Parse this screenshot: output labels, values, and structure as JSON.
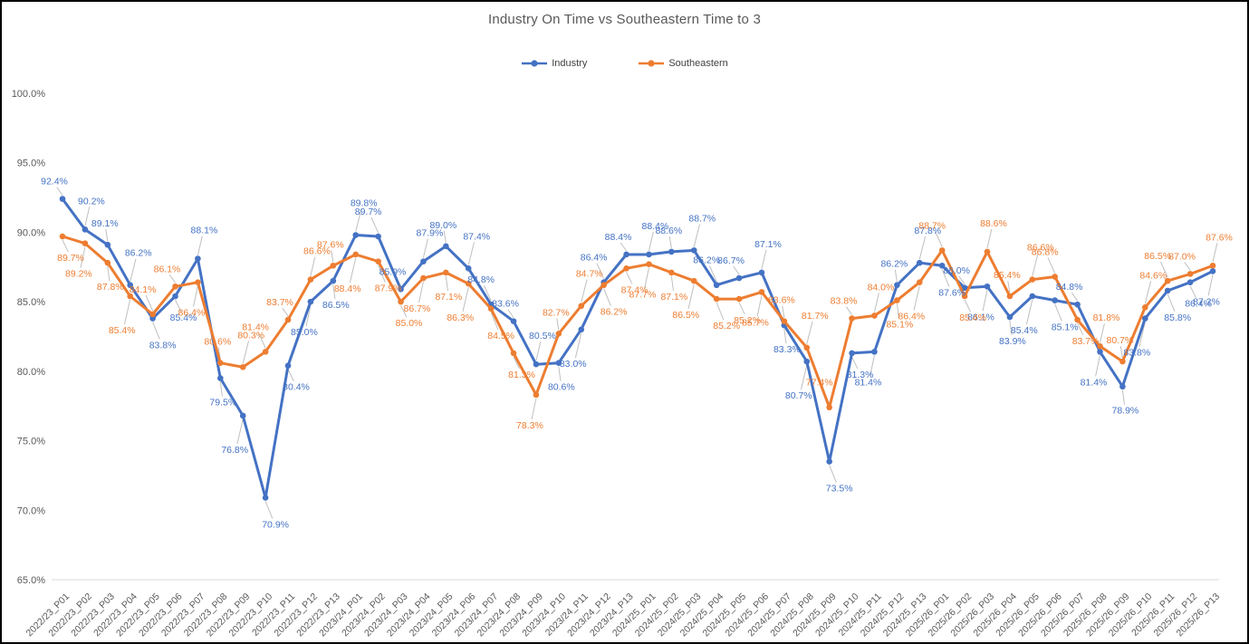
{
  "page": {
    "title": "Industry On Time vs Southeastern Time to 3"
  },
  "legend": {
    "items": [
      {
        "label": "Industry",
        "color": "#4472C4"
      },
      {
        "label": "Southeastern",
        "color": "#ED7D31"
      }
    ]
  },
  "chart_data": {
    "type": "line",
    "title": "Industry On Time vs Southeastern Time to 3",
    "categories": [
      "2022/23_P01",
      "2022/23_P02",
      "2022/23_P03",
      "2022/23_P04",
      "2022/23_P05",
      "2022/23_P06",
      "2022/23_P07",
      "2022/23_P08",
      "2022/23_P09",
      "2022/23_P10",
      "2022/23_P11",
      "2022/23_P12",
      "2022/23_P13",
      "2023/24_P01",
      "2023/24_P02",
      "2023/24_P03",
      "2023/24_P04",
      "2023/24_P05",
      "2023/24_P06",
      "2023/24_P07",
      "2023/24_P08",
      "2023/24_P09",
      "2023/24_P10",
      "2023/24_P11",
      "2023/24_P12",
      "2023/24_P13",
      "2024/25_P01",
      "2024/25_P02",
      "2024/25_P03",
      "2024/25_P04",
      "2024/25_P05",
      "2024/25_P06",
      "2024/25_P07",
      "2024/25_P08",
      "2024/25_P09",
      "2024/25_P10",
      "2024/25_P11",
      "2024/25_P12",
      "2024/25_P13",
      "2025/26_P01",
      "2025/26_P02",
      "2025/26_P03",
      "2025/26_P04",
      "2025/26_P05",
      "2025/26_P06",
      "2025/26_P07",
      "2025/26_P08",
      "2025/26_P09",
      "2025/26_P10",
      "2025/26_P11",
      "2025/26_P12",
      "2025/26_P13"
    ],
    "series": [
      {
        "name": "Industry",
        "color": "#4472C4",
        "values": [
          92.4,
          90.2,
          89.1,
          86.2,
          83.8,
          85.4,
          88.1,
          79.5,
          76.8,
          70.9,
          80.4,
          85.0,
          86.5,
          89.8,
          89.7,
          85.9,
          87.9,
          89.0,
          87.4,
          84.8,
          83.6,
          80.5,
          80.6,
          83.0,
          86.4,
          88.4,
          88.4,
          88.6,
          88.7,
          86.2,
          86.7,
          87.1,
          83.3,
          80.7,
          73.5,
          81.3,
          81.4,
          86.2,
          87.8,
          87.6,
          86.0,
          86.1,
          83.9,
          85.4,
          85.1,
          84.8,
          81.4,
          78.9,
          83.8,
          85.8,
          86.4,
          87.2
        ]
      },
      {
        "name": "Southeastern",
        "color": "#ED7D31",
        "values": [
          89.7,
          89.2,
          87.8,
          85.4,
          84.1,
          86.1,
          86.4,
          80.6,
          80.3,
          81.4,
          83.7,
          86.6,
          87.6,
          88.4,
          87.9,
          85.0,
          86.7,
          87.1,
          86.3,
          84.5,
          81.3,
          78.3,
          82.7,
          84.7,
          86.2,
          87.4,
          87.7,
          87.1,
          86.5,
          85.2,
          85.2,
          85.7,
          83.6,
          81.7,
          77.4,
          83.8,
          84.0,
          85.1,
          86.4,
          88.7,
          85.4,
          88.6,
          85.4,
          86.6,
          86.8,
          83.7,
          81.8,
          80.7,
          84.6,
          86.5,
          87.0,
          87.6
        ]
      }
    ],
    "xlabel": "",
    "ylabel": "",
    "ylim": [
      65,
      100
    ],
    "y_axis": {
      "min": 65,
      "max": 100,
      "step": 5,
      "tick_labels": [
        "100.0%",
        "95.0%",
        "90.0%",
        "85.0%",
        "80.0%",
        "75.0%",
        "70.0%",
        "65.0%"
      ]
    },
    "grid": false,
    "legend_position": "top-center",
    "data_labels": true,
    "label_format": "0.0%",
    "colors": {
      "title_text": "#595959",
      "axis_text": "#595959",
      "axis_line": "#D9D9D9",
      "leader_line": "#BFBFBF"
    }
  }
}
